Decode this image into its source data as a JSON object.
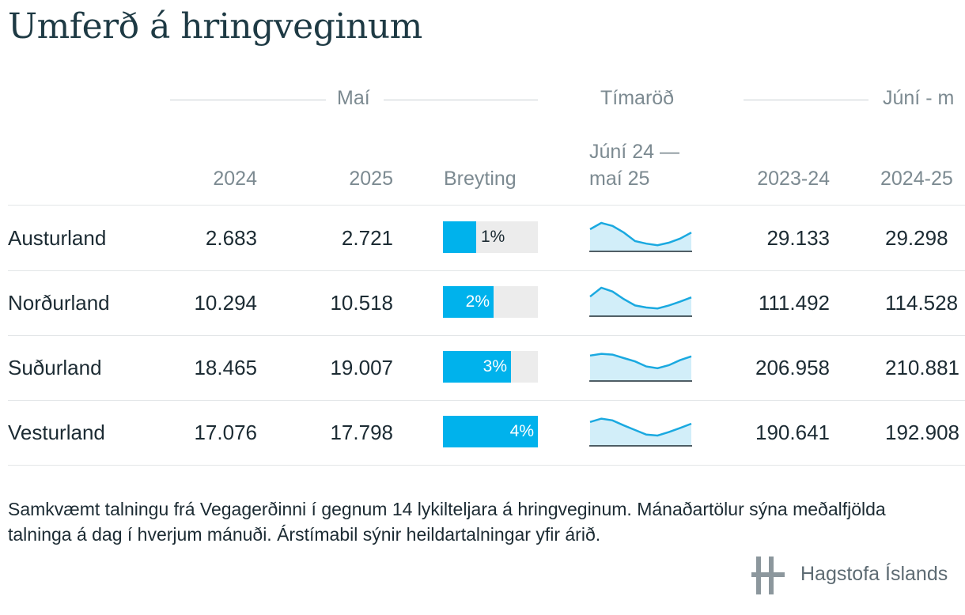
{
  "title": "Umferð á hringveginum",
  "groups": {
    "may": "Maí",
    "series": "Tímaröð",
    "period": "Júní - m"
  },
  "columns": {
    "c2024": "2024",
    "c2025": "2025",
    "change": "Breyting",
    "series_line1": "Júní 24 —",
    "series_line2": "maí 25",
    "c2023_24": "2023-24",
    "c2024_25": "2024-25"
  },
  "chart_data": {
    "type": "table",
    "title": "Umferð á hringveginum",
    "rows": [
      {
        "region": "Austurland",
        "may_2024": "2.683",
        "may_2025": "2.721",
        "change_pct": 1,
        "change_label": "1%",
        "year_2023_24": "29.133",
        "year_2024_25": "29.298",
        "sparkline": [
          0.75,
          1.0,
          0.88,
          0.62,
          0.28,
          0.18,
          0.12,
          0.22,
          0.38,
          0.62
        ]
      },
      {
        "region": "Norðurland",
        "may_2024": "10.294",
        "may_2025": "10.518",
        "change_pct": 2,
        "change_label": "2%",
        "year_2023_24": "111.492",
        "year_2024_25": "114.528",
        "sparkline": [
          0.65,
          1.0,
          0.85,
          0.55,
          0.3,
          0.22,
          0.18,
          0.3,
          0.45,
          0.62
        ]
      },
      {
        "region": "Suðurland",
        "may_2024": "18.465",
        "may_2025": "19.007",
        "change_pct": 3,
        "change_label": "3%",
        "year_2023_24": "206.958",
        "year_2024_25": "210.881",
        "sparkline": [
          0.88,
          0.95,
          0.92,
          0.78,
          0.65,
          0.45,
          0.38,
          0.5,
          0.7,
          0.85
        ]
      },
      {
        "region": "Vesturland",
        "may_2024": "17.076",
        "may_2025": "17.798",
        "change_pct": 4,
        "change_label": "4%",
        "year_2023_24": "190.641",
        "year_2024_25": "192.908",
        "sparkline": [
          0.82,
          0.95,
          0.88,
          0.68,
          0.5,
          0.32,
          0.28,
          0.42,
          0.58,
          0.75
        ]
      }
    ],
    "change_max_pct": 4
  },
  "footnote": "Samkvæmt talningu frá Vegagerðinni í gegnum 14 lykilteljara á hringveginum. Mánaðartölur sýna meðalfjölda talninga á dag í hverjum mánuði. Árstímabil sýnir heildartalningar yfir árið.",
  "brand": {
    "name": "Hagstofa Íslands"
  },
  "colors": {
    "bar": "#00b2ec",
    "bar_bg": "#ececec",
    "spark_line": "#1aa9e0",
    "spark_fill": "#d2eef9",
    "axis": "#1c2b33"
  }
}
